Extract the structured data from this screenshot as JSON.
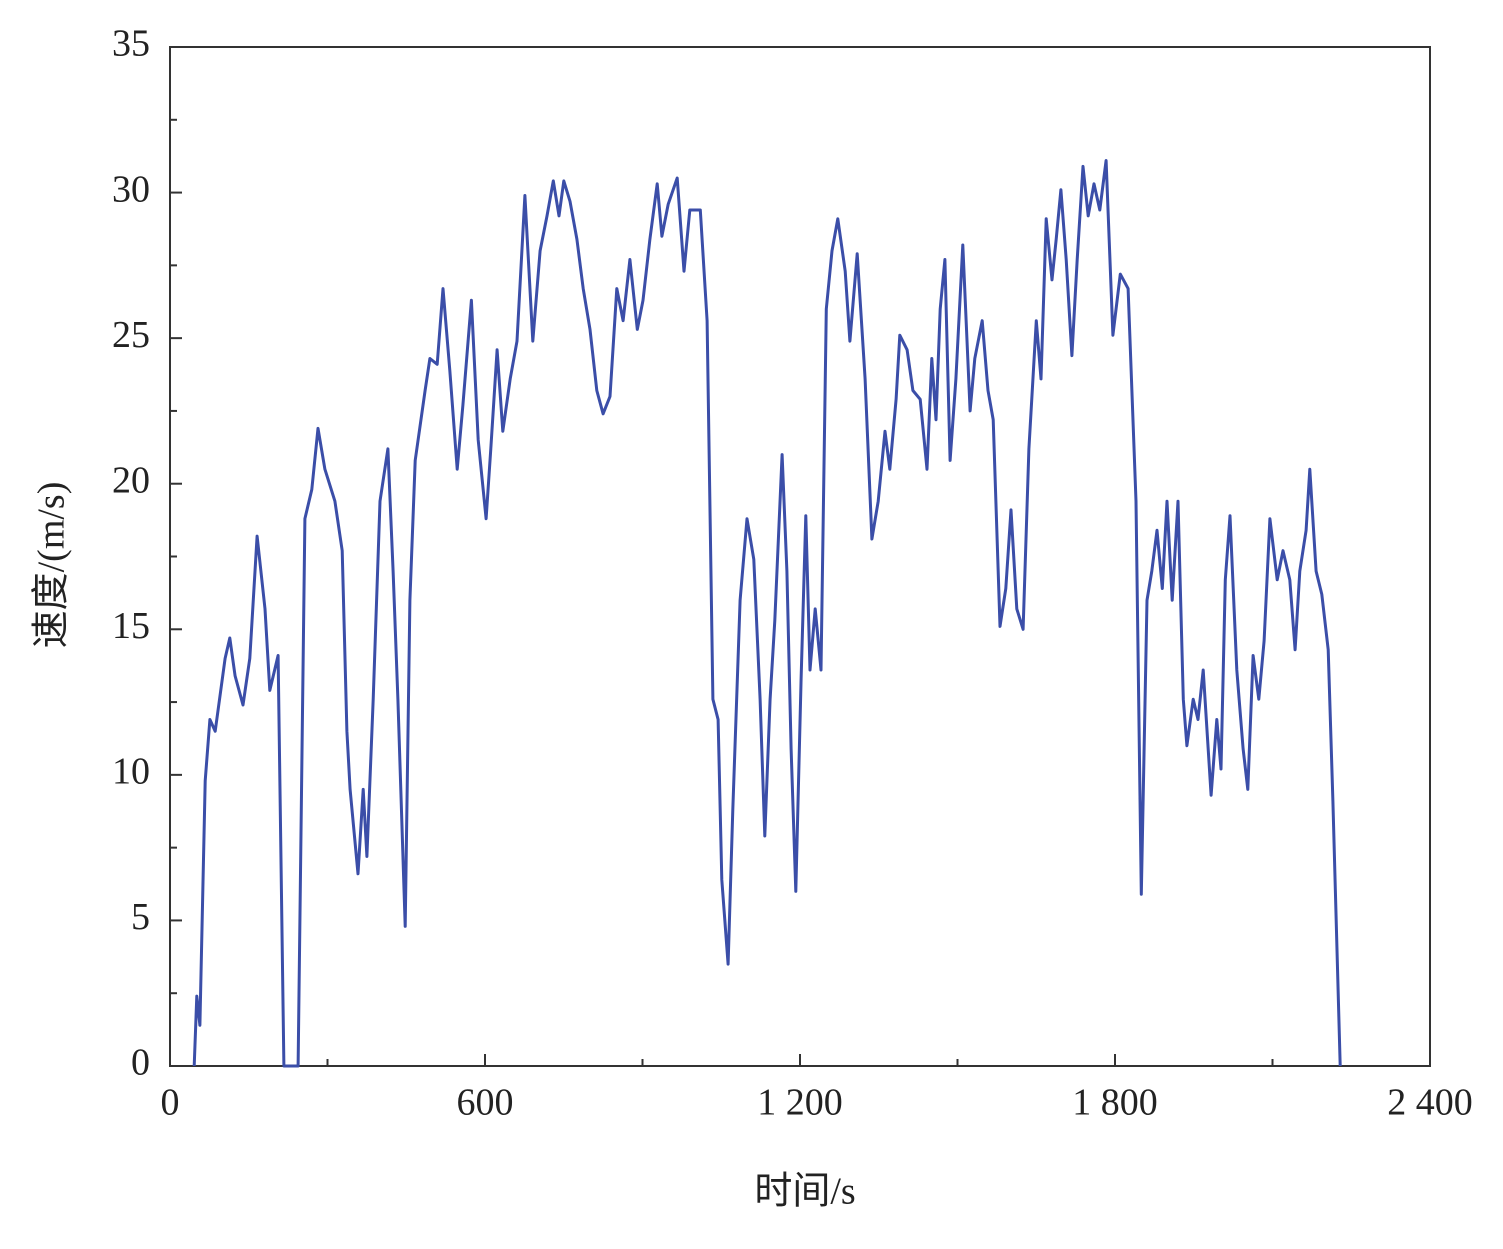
{
  "chart_data": {
    "type": "line",
    "xlabel": "时间/s",
    "ylabel": "速度/(m/s)",
    "x": [
      46,
      51,
      57,
      67,
      76,
      86,
      105,
      114,
      124,
      139,
      152,
      166,
      181,
      190,
      206,
      217,
      244,
      257,
      270,
      282,
      295,
      314,
      328,
      337,
      343,
      358,
      368,
      375,
      387,
      400,
      415,
      425,
      434,
      448,
      457,
      467,
      486,
      495,
      509,
      520,
      533,
      547,
      558,
      574,
      587,
      602,
      611,
      623,
      634,
      648,
      661,
      676,
      691,
      705,
      718,
      730,
      741,
      750,
      762,
      775,
      787,
      800,
      813,
      825,
      838,
      851,
      863,
      876,
      890,
      901,
      914,
      928,
      937,
      949,
      966,
      979,
      990,
      1010,
      1023,
      1034,
      1044,
      1051,
      1063,
      1072,
      1086,
      1099,
      1112,
      1124,
      1133,
      1143,
      1152,
      1166,
      1175,
      1183,
      1192,
      1202,
      1211,
      1219,
      1229,
      1240,
      1250,
      1261,
      1272,
      1286,
      1295,
      1309,
      1324,
      1337,
      1349,
      1362,
      1371,
      1383,
      1390,
      1404,
      1415,
      1429,
      1442,
      1451,
      1459,
      1467,
      1476,
      1486,
      1497,
      1510,
      1524,
      1533,
      1547,
      1558,
      1568,
      1581,
      1592,
      1602,
      1613,
      1625,
      1636,
      1650,
      1659,
      1669,
      1680,
      1688,
      1697,
      1707,
      1718,
      1728,
      1739,
      1749,
      1760,
      1771,
      1783,
      1796,
      1810,
      1825,
      1840,
      1850,
      1861,
      1870,
      1880,
      1890,
      1899,
      1909,
      1920,
      1930,
      1937,
      1949,
      1958,
      1968,
      1983,
      1994,
      2002,
      2010,
      2019,
      2032,
      2044,
      2053,
      2063,
      2074,
      2084,
      2095,
      2109,
      2120,
      2133,
      2143,
      2152,
      2164,
      2171,
      2183,
      2194,
      2206,
      2215,
      2229
    ],
    "values": [
      0,
      2.4,
      1.4,
      9.8,
      11.9,
      11.5,
      14.0,
      14.7,
      13.4,
      12.4,
      14.0,
      18.2,
      15.7,
      12.9,
      14.1,
      0,
      0,
      18.8,
      19.8,
      21.9,
      20.5,
      19.4,
      17.7,
      11.5,
      9.5,
      6.6,
      9.5,
      7.2,
      12.6,
      19.4,
      21.2,
      17.0,
      12.6,
      4.8,
      16.0,
      20.8,
      23.2,
      24.3,
      24.1,
      26.7,
      23.9,
      20.5,
      22.7,
      26.3,
      21.5,
      18.8,
      21.2,
      24.6,
      21.8,
      23.6,
      24.9,
      29.9,
      24.9,
      28.0,
      29.2,
      30.4,
      29.2,
      30.4,
      29.7,
      28.4,
      26.7,
      25.3,
      23.2,
      22.4,
      23.0,
      26.7,
      25.6,
      27.7,
      25.3,
      26.3,
      28.4,
      30.3,
      28.5,
      29.6,
      30.5,
      27.3,
      29.4,
      29.4,
      25.6,
      12.6,
      11.9,
      6.4,
      3.5,
      8.8,
      16.0,
      18.8,
      17.4,
      12.6,
      7.9,
      12.6,
      15.3,
      21.0,
      17.0,
      10.9,
      6.0,
      13.3,
      18.9,
      13.6,
      15.7,
      13.6,
      26.0,
      28.0,
      29.1,
      27.3,
      24.9,
      27.9,
      23.6,
      18.1,
      19.4,
      21.8,
      20.5,
      22.9,
      25.1,
      24.6,
      23.2,
      22.9,
      20.5,
      24.3,
      22.2,
      26.0,
      27.7,
      20.8,
      23.6,
      28.2,
      22.5,
      24.3,
      25.6,
      23.2,
      22.2,
      15.1,
      16.4,
      19.1,
      15.7,
      15.0,
      21.2,
      25.6,
      23.6,
      29.1,
      27.0,
      28.4,
      30.1,
      27.7,
      24.4,
      27.7,
      30.9,
      29.2,
      30.3,
      29.4,
      31.1,
      25.1,
      27.2,
      26.7,
      19.4,
      5.9,
      16.0,
      17.0,
      18.4,
      16.4,
      19.4,
      16.0,
      19.4,
      12.6,
      11.0,
      12.6,
      11.9,
      13.6,
      9.3,
      11.9,
      10.2,
      16.7,
      18.9,
      13.6,
      10.9,
      9.5,
      14.1,
      12.6,
      14.6,
      18.8,
      16.7,
      17.7,
      16.7,
      14.3,
      17.0,
      18.4,
      20.5,
      17.0,
      16.2,
      14.3,
      9.1,
      0
    ],
    "color": "#3b4ea8",
    "xlim": [
      0,
      2400
    ],
    "ylim": [
      0,
      35
    ],
    "xticks": [
      0,
      600,
      {
        "value": 1200,
        "label": "1 200"
      },
      {
        "value": 1800,
        "label": "1 800"
      },
      {
        "value": 2400,
        "label": "2 400"
      }
    ],
    "xminorticks": [
      300,
      900,
      1500,
      2100
    ],
    "yticks": [
      0,
      5,
      10,
      15,
      20,
      25,
      30,
      35
    ],
    "yminorticks": [
      2.5,
      7.5,
      12.5,
      17.5,
      22.5,
      27.5,
      32.5
    ]
  }
}
